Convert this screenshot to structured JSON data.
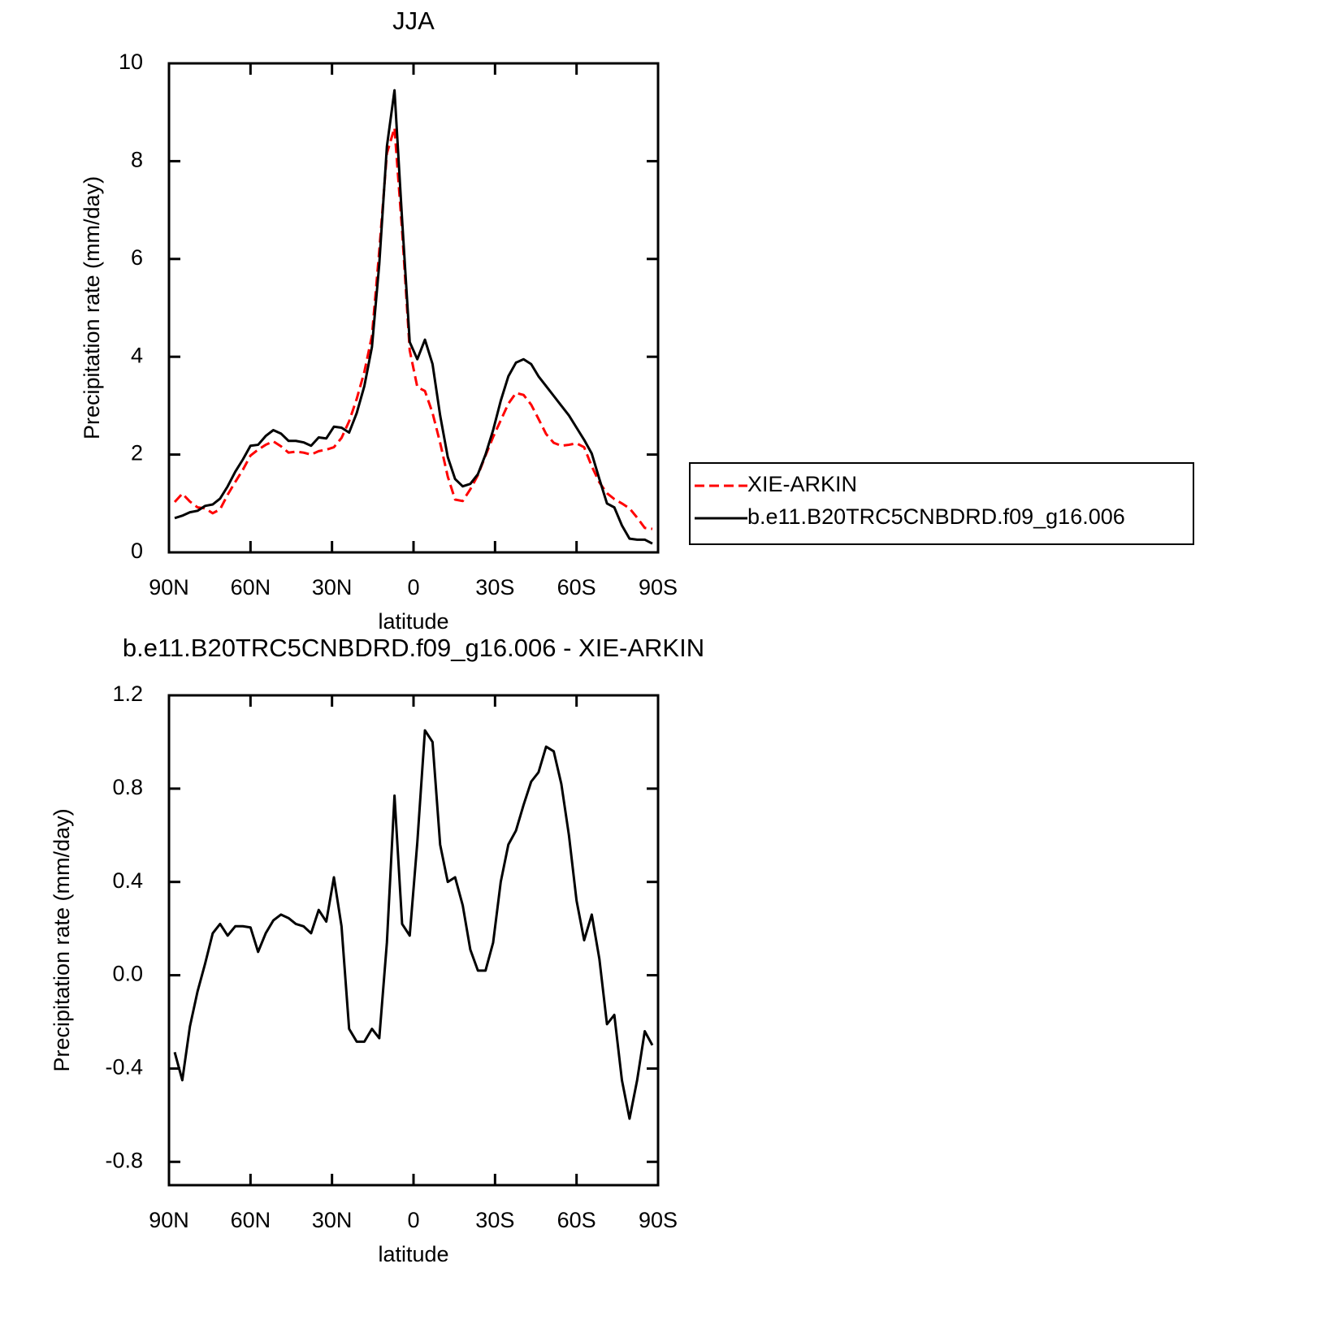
{
  "chart_data": [
    {
      "type": "line",
      "title": "JJA",
      "xlabel": "latitude",
      "ylabel": "Precipitation rate (mm/day)",
      "x": [
        87.9,
        85.1,
        82.3,
        79.5,
        76.7,
        73.9,
        71.2,
        68.4,
        65.6,
        62.8,
        60.0,
        57.2,
        54.4,
        51.6,
        48.8,
        46.0,
        43.3,
        40.5,
        37.7,
        34.9,
        32.1,
        29.3,
        26.5,
        23.7,
        20.9,
        18.1,
        15.3,
        12.6,
        9.8,
        7.0,
        4.2,
        1.4,
        -1.4,
        -4.2,
        -7.0,
        -9.8,
        -12.6,
        -15.3,
        -18.1,
        -20.9,
        -23.7,
        -26.5,
        -29.3,
        -32.1,
        -34.9,
        -37.7,
        -40.5,
        -43.3,
        -46.0,
        -48.8,
        -51.6,
        -54.4,
        -57.2,
        -60.0,
        -62.8,
        -65.6,
        -68.4,
        -71.2,
        -73.9,
        -76.7,
        -79.5,
        -82.3,
        -85.1,
        -87.9
      ],
      "series": [
        {
          "name": "XIE-ARKIN",
          "color": "#ff0000",
          "line_style": "dashed",
          "values": [
            1.03,
            1.2,
            1.04,
            0.92,
            0.9,
            0.8,
            0.88,
            1.18,
            1.44,
            1.69,
            1.98,
            2.1,
            2.2,
            2.27,
            2.17,
            2.04,
            2.06,
            2.04,
            2.0,
            2.07,
            2.1,
            2.15,
            2.34,
            2.68,
            3.14,
            3.69,
            4.43,
            6.17,
            8.16,
            8.68,
            6.58,
            4.13,
            3.38,
            3.3,
            2.85,
            2.24,
            1.55,
            1.08,
            1.05,
            1.29,
            1.58,
            1.98,
            2.36,
            2.7,
            3.04,
            3.26,
            3.22,
            3.02,
            2.73,
            2.42,
            2.24,
            2.18,
            2.2,
            2.23,
            2.15,
            1.76,
            1.43,
            1.21,
            1.09,
            1.0,
            0.9,
            0.71,
            0.5,
            0.48
          ]
        },
        {
          "name": "b.e11.B20TRC5CNBDRD.f09_g16.006",
          "color": "#000000",
          "line_style": "solid",
          "values": [
            0.7,
            0.75,
            0.82,
            0.85,
            0.95,
            0.98,
            1.1,
            1.35,
            1.65,
            1.9,
            2.18,
            2.2,
            2.38,
            2.5,
            2.43,
            2.28,
            2.28,
            2.25,
            2.18,
            2.35,
            2.33,
            2.57,
            2.55,
            2.45,
            2.85,
            3.4,
            4.2,
            5.9,
            8.3,
            9.45,
            6.8,
            4.3,
            3.95,
            4.35,
            3.85,
            2.8,
            1.95,
            1.5,
            1.35,
            1.4,
            1.6,
            2.0,
            2.5,
            3.1,
            3.6,
            3.88,
            3.95,
            3.85,
            3.6,
            3.4,
            3.2,
            3.0,
            2.8,
            2.55,
            2.3,
            2.02,
            1.5,
            1.0,
            0.92,
            0.55,
            0.28,
            0.26,
            0.26,
            0.18
          ]
        }
      ],
      "xlim": [
        90,
        -90
      ],
      "xticks": [
        {
          "value": 90,
          "label": "90N"
        },
        {
          "value": 60,
          "label": "60N"
        },
        {
          "value": 30,
          "label": "30N"
        },
        0,
        {
          "value": -30,
          "label": "30S"
        },
        {
          "value": -60,
          "label": "60S"
        },
        {
          "value": -90,
          "label": "90S"
        }
      ],
      "ylim": [
        0,
        10
      ],
      "yticks": [
        0,
        2,
        4,
        6,
        8,
        10
      ],
      "legend": "right"
    },
    {
      "type": "line",
      "title": "b.e11.B20TRC5CNBDRD.f09_g16.006 - XIE-ARKIN",
      "xlabel": "latitude",
      "ylabel": "Precipitation rate (mm/day)",
      "x": [
        87.9,
        85.1,
        82.3,
        79.5,
        76.7,
        73.9,
        71.2,
        68.4,
        65.6,
        62.8,
        60.0,
        57.2,
        54.4,
        51.6,
        48.8,
        46.0,
        43.3,
        40.5,
        37.7,
        34.9,
        32.1,
        29.3,
        26.5,
        23.7,
        20.9,
        18.1,
        15.3,
        12.6,
        9.8,
        7.0,
        4.2,
        1.4,
        -1.4,
        -4.2,
        -7.0,
        -9.8,
        -12.6,
        -15.3,
        -18.1,
        -20.9,
        -23.7,
        -26.5,
        -29.3,
        -32.1,
        -34.9,
        -37.7,
        -40.5,
        -43.3,
        -46.0,
        -48.8,
        -51.6,
        -54.4,
        -57.2,
        -60.0,
        -62.8,
        -65.6,
        -68.4,
        -71.2,
        -73.9,
        -76.7,
        -79.5,
        -82.3,
        -85.1,
        -87.9
      ],
      "series": [
        {
          "color": "#000000",
          "line_style": "solid",
          "values": [
            -0.33,
            -0.45,
            -0.22,
            -0.07,
            0.05,
            0.18,
            0.22,
            0.17,
            0.21,
            0.21,
            0.205,
            0.1,
            0.18,
            0.235,
            0.26,
            0.245,
            0.22,
            0.21,
            0.18,
            0.28,
            0.23,
            0.42,
            0.21,
            -0.23,
            -0.285,
            -0.285,
            -0.23,
            -0.27,
            0.14,
            0.77,
            0.22,
            0.17,
            0.57,
            1.05,
            1.0,
            0.56,
            0.4,
            0.42,
            0.3,
            0.11,
            0.02,
            0.02,
            0.14,
            0.4,
            0.56,
            0.62,
            0.73,
            0.83,
            0.87,
            0.98,
            0.96,
            0.82,
            0.6,
            0.32,
            0.15,
            0.26,
            0.07,
            -0.21,
            -0.17,
            -0.45,
            -0.615,
            -0.45,
            -0.24,
            -0.3
          ]
        }
      ],
      "xlim": [
        90,
        -90
      ],
      "xticks": [
        {
          "value": 90,
          "label": "90N"
        },
        {
          "value": 60,
          "label": "60N"
        },
        {
          "value": 30,
          "label": "30N"
        },
        0,
        {
          "value": -30,
          "label": "30S"
        },
        {
          "value": -60,
          "label": "60S"
        },
        {
          "value": -90,
          "label": "90S"
        }
      ],
      "ylim": [
        -0.9,
        1.2
      ],
      "yticks": [
        -0.8,
        -0.4,
        {
          "value": 0,
          "label": "0.0"
        },
        0.4,
        0.8,
        1.2
      ]
    }
  ]
}
